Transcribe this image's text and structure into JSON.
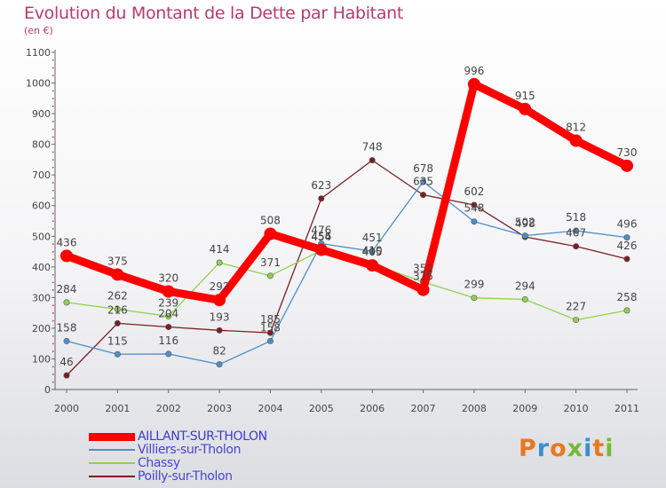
{
  "header": {
    "title": "Evolution du Montant de la Dette par Habitant",
    "subtitle": "(en €)"
  },
  "logo": {
    "text": "Proxiti",
    "colors": [
      "#e8781e",
      "#3a8fd0",
      "#e8781e",
      "#78b83a",
      "#3a8fd0",
      "#e8781e",
      "#78b83a"
    ]
  },
  "chart_data": {
    "type": "line",
    "title": "Evolution du Montant de la Dette par Habitant",
    "subtitle": "(en €)",
    "x": [
      "2000",
      "2001",
      "2002",
      "2003",
      "2004",
      "2005",
      "2006",
      "2007",
      "2008",
      "2009",
      "2010",
      "2011"
    ],
    "ylim": [
      0,
      1100
    ],
    "yticks": [
      "0",
      "100",
      "200",
      "300",
      "400",
      "500",
      "600",
      "700",
      "800",
      "900",
      "1000",
      "1100"
    ],
    "grid": false,
    "legend": "bottom-left",
    "series": [
      {
        "name": "AILLANT-SUR-THOLON",
        "color": "#ff0000",
        "values": [
          436,
          375,
          320,
          292,
          508,
          456,
          405,
          325,
          996,
          915,
          812,
          730
        ],
        "labels": [
          "436",
          "375",
          "320",
          "292",
          "508",
          "456",
          "405",
          "325",
          "996",
          "915",
          "812",
          "730"
        ]
      },
      {
        "name": "Villiers-sur-Tholon",
        "color": "#4f8ec9",
        "values": [
          158,
          115,
          116,
          82,
          158,
          476,
          451,
          678,
          548,
          502,
          518,
          496
        ],
        "labels": [
          "158",
          "115",
          "116",
          "82",
          "158",
          "476",
          "451",
          "678",
          "548",
          "502",
          "518",
          "496"
        ]
      },
      {
        "name": "Chassy",
        "color": "#8fd14f",
        "values": [
          284,
          262,
          239,
          414,
          371,
          454,
          410,
          351,
          299,
          294,
          227,
          258
        ],
        "labels": [
          "284",
          "262",
          "239",
          "414",
          "371",
          "454",
          "410",
          "351",
          "299",
          "294",
          "227",
          "258"
        ]
      },
      {
        "name": "Poilly-sur-Tholon",
        "color": "#7a1f24",
        "values": [
          46,
          216,
          204,
          193,
          185,
          623,
          748,
          635,
          602,
          498,
          467,
          426
        ],
        "labels": [
          "46",
          "216",
          "204",
          "193",
          "185",
          "623",
          "748",
          "635",
          "602",
          "498",
          "467",
          "426"
        ]
      }
    ]
  }
}
